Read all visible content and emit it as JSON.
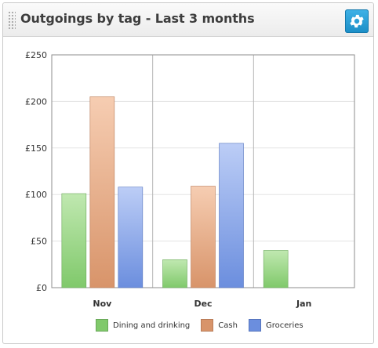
{
  "widget": {
    "title": "Outgoings by tag - Last 3 months",
    "settings_icon": "gear-icon"
  },
  "chart_data": {
    "type": "bar",
    "title": "",
    "xlabel": "",
    "ylabel": "",
    "categories": [
      "Nov",
      "Dec",
      "Jan"
    ],
    "ylim": [
      0,
      250
    ],
    "yticks": [
      0,
      50,
      100,
      150,
      200,
      250
    ],
    "ytick_labels": [
      "£0",
      "£50",
      "£100",
      "£150",
      "£200",
      "£250"
    ],
    "grid": true,
    "legend_position": "bottom",
    "series": [
      {
        "name": "Dining and drinking",
        "values": [
          101,
          30,
          40
        ],
        "color": "#80c96b",
        "light": "#c0e8b0",
        "edge": "#6aa85a"
      },
      {
        "name": "Cash",
        "values": [
          205,
          109,
          null
        ],
        "color": "#d8946a",
        "light": "#f6cdb2",
        "edge": "#b97c58"
      },
      {
        "name": "Groceries",
        "values": [
          108,
          155,
          null
        ],
        "color": "#6b8ede",
        "light": "#bccdf6",
        "edge": "#5675be"
      }
    ]
  }
}
